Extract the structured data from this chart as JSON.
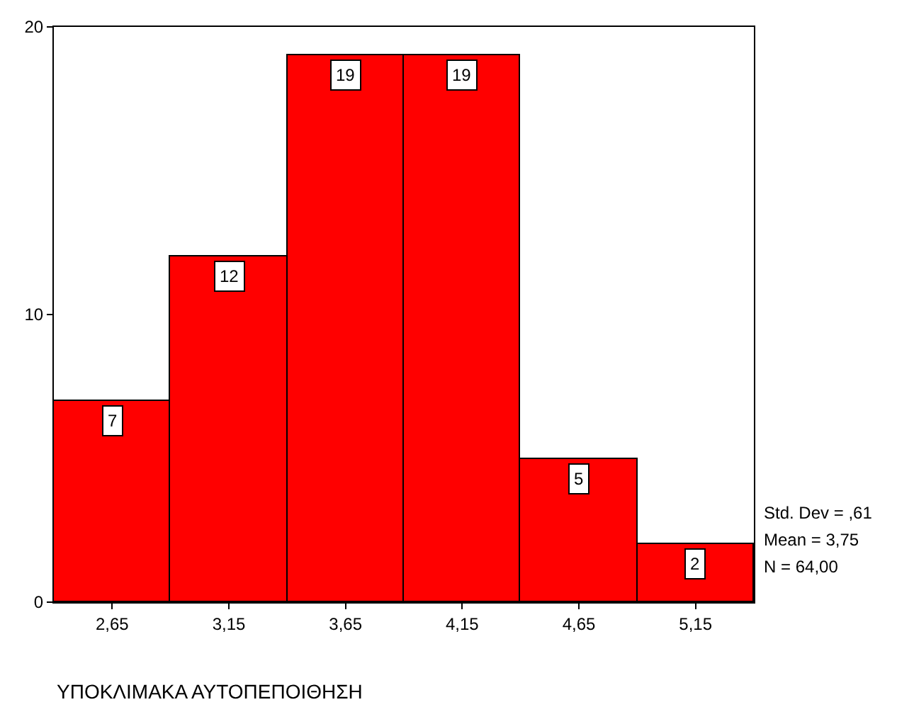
{
  "chart_data": {
    "type": "histogram",
    "xlabel": "ΥΠΟΚΛΙΜΑΚΑ ΑΥΤΟΠΕΠΟΙΘΗΣΗ",
    "bins": [
      2.4,
      2.9,
      3.4,
      3.9,
      4.4,
      4.9,
      5.4
    ],
    "values": [
      7,
      12,
      19,
      19,
      5,
      2
    ],
    "color": "#ff0000",
    "xlim": [
      2.4,
      5.4
    ],
    "xticks": [
      {
        "value": 2.65,
        "label": "2,65"
      },
      {
        "value": 3.15,
        "label": "3,15"
      },
      {
        "value": 3.65,
        "label": "3,65"
      },
      {
        "value": 4.15,
        "label": "4,15"
      },
      {
        "value": 4.65,
        "label": "4,65"
      },
      {
        "value": 5.15,
        "label": "5,15"
      }
    ],
    "ylim": [
      0,
      20
    ],
    "yticks": [
      0,
      10,
      20
    ],
    "data_labels": true,
    "annotations": [
      "Std. Dev = ,61",
      "Mean = 3,75",
      "N = 64,00"
    ]
  }
}
